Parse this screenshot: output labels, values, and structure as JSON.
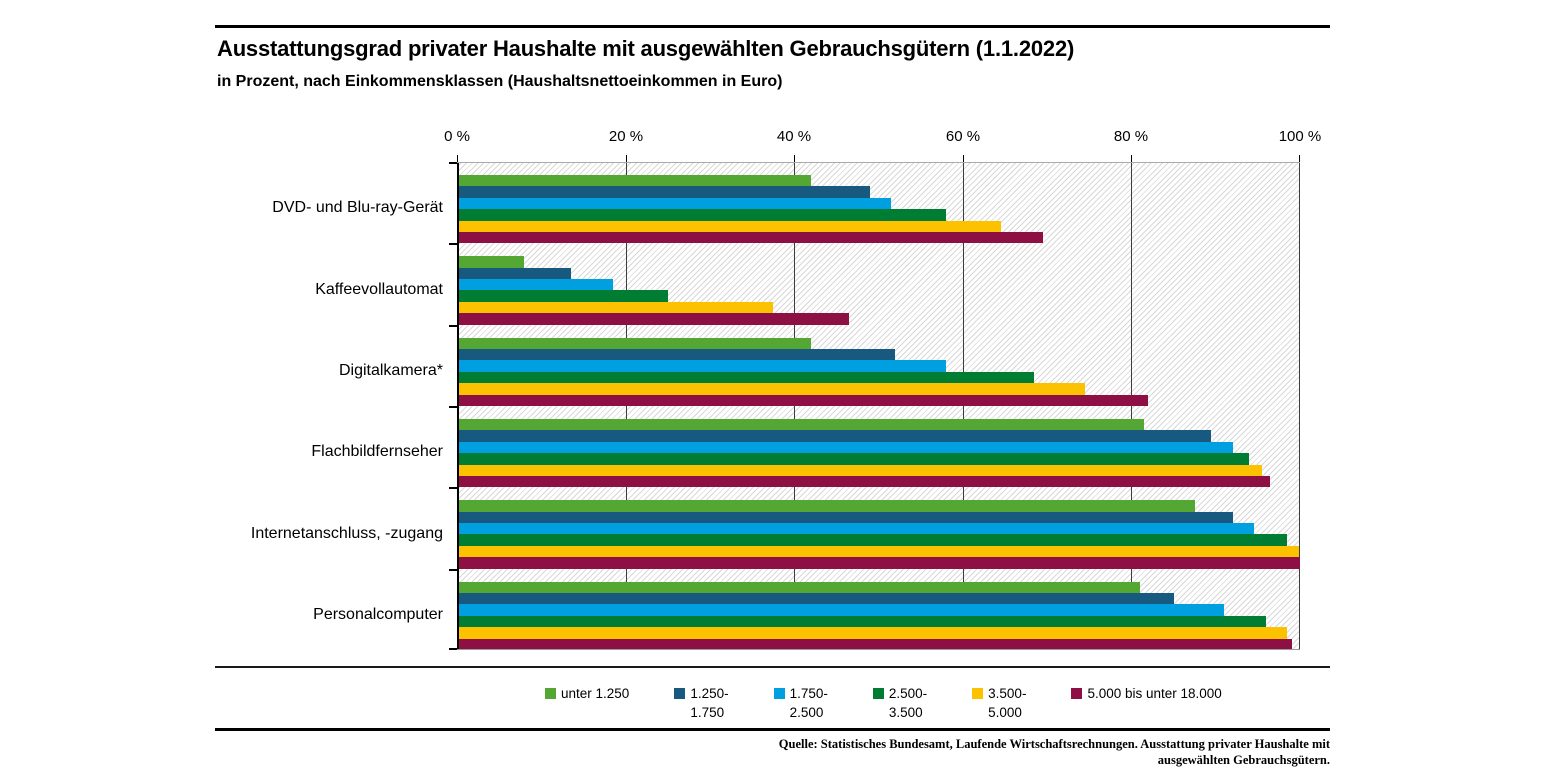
{
  "header": {
    "title": "Ausstattungsgrad privater Haushalte mit ausgewählten Gebrauchsgütern (1.1.2022)",
    "subtitle": "in Prozent, nach Einkommensklassen (Haushaltsnettoeinkommen in Euro)"
  },
  "chart_data": {
    "type": "bar",
    "orientation": "horizontal",
    "unit": "%",
    "title": "Ausstattungsgrad privater Haushalte mit ausgewählten Gebrauchsgütern (1.1.2022)",
    "subtitle": "in Prozent, nach Einkommensklassen (Haushaltsnettoeinkommen in Euro)",
    "categories": [
      "DVD- und Blu-ray-Gerät",
      "Kaffeevollautomat",
      "Digitalkamera*",
      "Flachbildfernseher",
      "Internetanschluss, -zugang",
      "Personalcomputer"
    ],
    "series": [
      {
        "name": "unter 1.250",
        "legend_lines": [
          "unter 1.250"
        ],
        "color": "#55a733",
        "values": [
          42,
          8,
          42,
          81.5,
          87.5,
          81
        ]
      },
      {
        "name": "1.250-1.750",
        "legend_lines": [
          "1.250-",
          "1.750"
        ],
        "color": "#17597f",
        "values": [
          49,
          13.5,
          52,
          89.5,
          92,
          85
        ]
      },
      {
        "name": "1.750-2.500",
        "legend_lines": [
          "1.750-",
          "2.500"
        ],
        "color": "#009fe0",
        "values": [
          51.5,
          18.5,
          58,
          92,
          94.5,
          91
        ]
      },
      {
        "name": "2.500-3.500",
        "legend_lines": [
          "2.500-",
          "3.500"
        ],
        "color": "#007d32",
        "values": [
          58,
          25,
          68.5,
          94,
          98.5,
          96
        ]
      },
      {
        "name": "3.500-5.000",
        "legend_lines": [
          "3.500-",
          "5.000"
        ],
        "color": "#fcc200",
        "values": [
          64.5,
          37.5,
          74.5,
          95.5,
          99.9,
          98.5
        ]
      },
      {
        "name": "5.000 bis unter 18.000",
        "legend_lines": [
          "5.000 bis unter 18.000"
        ],
        "color": "#8e0f44",
        "values": [
          69.5,
          46.5,
          82,
          96.5,
          100,
          99
        ]
      }
    ],
    "x_axis": {
      "ticks": [
        "0 %",
        "20 %",
        "40 %",
        "60 %",
        "80 %",
        "100 %"
      ],
      "tick_values": [
        0,
        20,
        40,
        60,
        80,
        100
      ],
      "min": 0,
      "max": 100
    },
    "grid": "vertical",
    "legend_position": "bottom",
    "plot_background": "diagonal-hatch"
  },
  "source": {
    "line1": "Quelle: Statistisches Bundesamt, Laufende Wirtschaftsrechnungen. Ausstattung privater Haushalte mit",
    "line2": "ausgewählten Gebrauchsgütern."
  }
}
